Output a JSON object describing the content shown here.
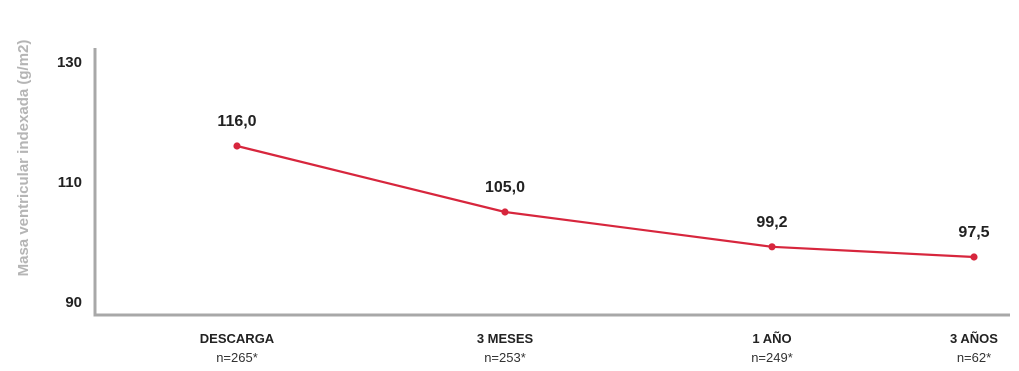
{
  "chart_data": {
    "type": "line",
    "ylabel": "Masa ventricular indexada (g/m2)",
    "xlabel": "",
    "ylim": [
      90,
      130
    ],
    "yticks": [
      90,
      110,
      130
    ],
    "categories": [
      "DESCARGA",
      "3 MESES",
      "1 AÑO",
      "3 AÑOS"
    ],
    "category_notes": [
      "n=265*",
      "n=253*",
      "n=249*",
      "n=62*"
    ],
    "series": [
      {
        "values": [
          116.0,
          105.0,
          99.2,
          97.5
        ],
        "labels": [
          "116,0",
          "105,0",
          "99,2",
          "97,5"
        ],
        "color": "#d7263d"
      }
    ],
    "grid": false,
    "axis_color": "#a8a8a8"
  }
}
